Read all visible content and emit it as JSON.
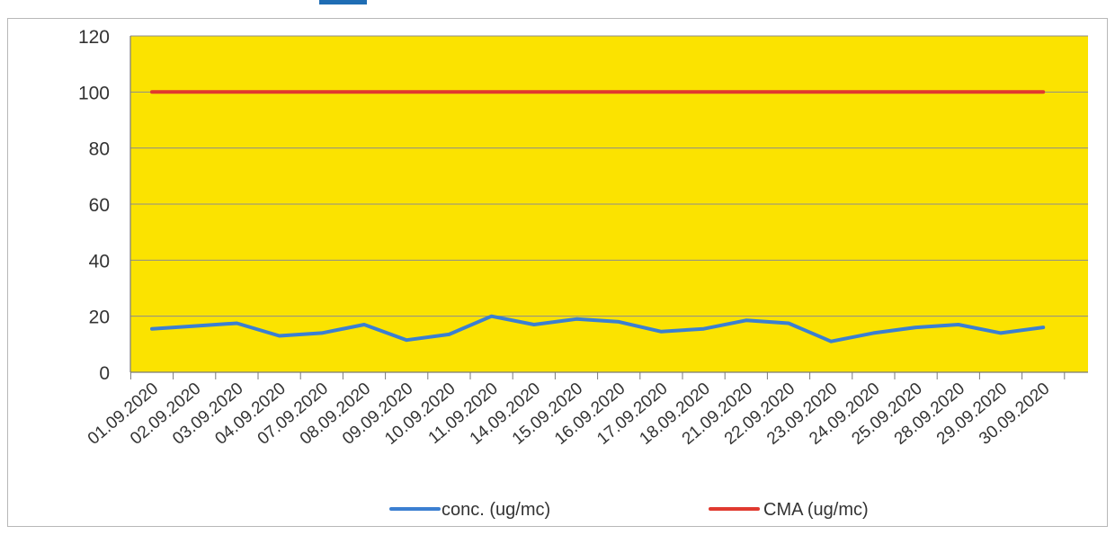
{
  "chart_data": {
    "type": "line",
    "title": "",
    "xlabel": "",
    "ylabel": "",
    "categories": [
      "01.09.2020",
      "02.09.2020",
      "03.09.2020",
      "04.09.2020",
      "07.09.2020",
      "08.09.2020",
      "09.09.2020",
      "10.09.2020",
      "11.09.2020",
      "14.09.2020",
      "15.09.2020",
      "16.09.2020",
      "17.09.2020",
      "18.09.2020",
      "21.09.2020",
      "22.09.2020",
      "23.09.2020",
      "24.09.2020",
      "25.09.2020",
      "28.09.2020",
      "29.09.2020",
      "30.09.2020"
    ],
    "series": [
      {
        "name": "conc. (ug/mc)",
        "color": "#3b7fd1",
        "values": [
          15.5,
          16.5,
          17.5,
          13,
          14,
          17,
          11.5,
          13.5,
          20,
          17,
          19,
          18,
          14.5,
          15.5,
          18.5,
          17.5,
          11,
          14,
          16,
          17,
          14,
          16
        ]
      },
      {
        "name": "CMA (ug/mc)",
        "color": "#e0392f",
        "values": [
          100,
          100,
          100,
          100,
          100,
          100,
          100,
          100,
          100,
          100,
          100,
          100,
          100,
          100,
          100,
          100,
          100,
          100,
          100,
          100,
          100,
          100
        ]
      }
    ],
    "ylim": [
      0,
      120
    ],
    "yticks": [
      0,
      20,
      40,
      60,
      80,
      100,
      120
    ],
    "grid": true,
    "legend_position": "bottom",
    "plot_background": "#fbe300"
  }
}
